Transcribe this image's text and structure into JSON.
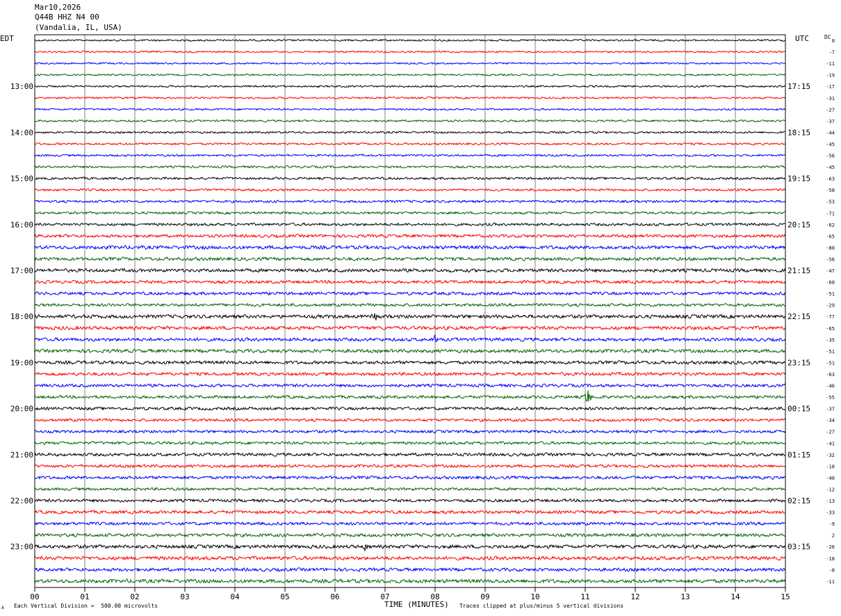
{
  "header": {
    "date": "Mar10,2026",
    "station": "Q44B HHZ N4 00",
    "location": "(Vandalia, IL, USA)"
  },
  "left_zone": "EDT",
  "right_zone": "UTC",
  "dc_label": "DC",
  "footer": {
    "scale_note": "Each Vertical Division =  500.00 microvolts",
    "xlabel": "TIME (MINUTES)",
    "clip_note": "Traces clipped at plus/minus 5 vertical divisions",
    "corner_mark": "A"
  },
  "colors": {
    "background": "#ffffff",
    "trace_cycle": [
      "#000000",
      "#ff0000",
      "#0000ff",
      "#006400"
    ],
    "grid": "#808080"
  },
  "chart_data": {
    "type": "line",
    "title": "Q44B HHZ N4 00",
    "xlabel": "TIME (MINUTES)",
    "xlim": [
      0,
      15
    ],
    "x_ticks": [
      "00",
      "01",
      "02",
      "03",
      "04",
      "05",
      "06",
      "07",
      "08",
      "09",
      "10",
      "11",
      "12",
      "13",
      "14",
      "15"
    ],
    "rows_per_hour": 4,
    "row_count": 48,
    "left_time_labels": [
      "13:00",
      "14:00",
      "15:00",
      "16:00",
      "17:00",
      "18:00",
      "19:00",
      "20:00",
      "21:00",
      "22:00",
      "23:00"
    ],
    "right_time_labels": [
      "17:15",
      "18:15",
      "19:15",
      "20:15",
      "21:15",
      "22:15",
      "23:15",
      "00:15",
      "01:15",
      "02:15",
      "03:15"
    ],
    "dc_offsets": [
      "0",
      "-7",
      "-11",
      "-19",
      "-17",
      "-31",
      "-27",
      "-37",
      "-44",
      "-45",
      "-56",
      "-45",
      "-63",
      "-58",
      "-53",
      "-71",
      "-62",
      "-65",
      "-80",
      "-56",
      "-47",
      "-60",
      "-51",
      "-29",
      "-77",
      "-65",
      "-35",
      "-51",
      "-51",
      "-63",
      "-46",
      "-55",
      "-37",
      "-34",
      "-27",
      "-41",
      "-32",
      "-18",
      "-40",
      "-12",
      "-13",
      "-33",
      "-9",
      "2",
      "-26",
      "-18",
      "-8",
      "-11"
    ],
    "row_amplitude": [
      1.5,
      1.5,
      1.5,
      1.5,
      1.6,
      1.6,
      1.6,
      1.7,
      1.7,
      1.8,
      1.8,
      1.9,
      2.0,
      2.0,
      2.1,
      2.1,
      2.3,
      2.6,
      3.0,
      2.8,
      2.9,
      2.6,
      2.6,
      2.5,
      3.0,
      3.0,
      2.8,
      2.9,
      2.8,
      2.7,
      2.6,
      2.5,
      2.5,
      2.4,
      2.4,
      2.4,
      2.6,
      2.5,
      2.6,
      2.4,
      2.5,
      2.7,
      2.6,
      2.8,
      3.0,
      3.0,
      2.8,
      3.1
    ],
    "spikes": [
      {
        "row": 31,
        "minute": 11.05,
        "amplitude": 12
      },
      {
        "row": 24,
        "minute": 6.8,
        "amplitude": 7
      },
      {
        "row": 44,
        "minute": 6.6,
        "amplitude": 6
      },
      {
        "row": 26,
        "minute": 8.0,
        "amplitude": 6
      }
    ]
  }
}
